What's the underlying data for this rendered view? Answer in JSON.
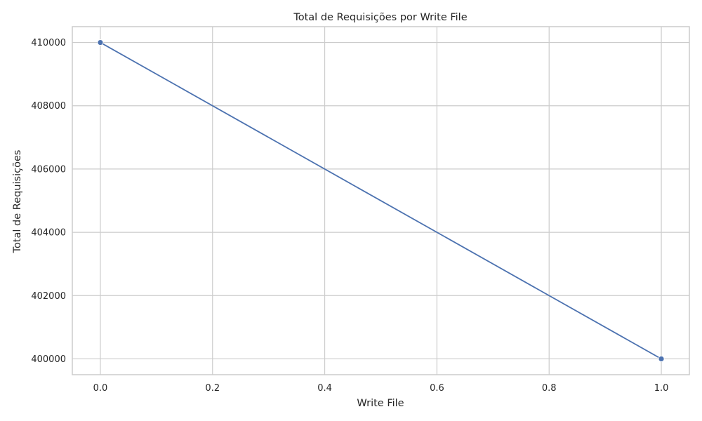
{
  "chart_data": {
    "type": "line",
    "title": "Total de Requisições por Write File",
    "xlabel": "Write File",
    "ylabel": "Total de Requisições",
    "x": [
      0,
      1
    ],
    "series": [
      {
        "values": [
          410000,
          400000
        ]
      }
    ],
    "xlim": [
      -0.05,
      1.05
    ],
    "ylim": [
      399500,
      410500
    ],
    "xticks": [
      0.0,
      0.2,
      0.4,
      0.6,
      0.8,
      1.0
    ],
    "xtick_labels": [
      "0.0",
      "0.2",
      "0.4",
      "0.6",
      "0.8",
      "1.0"
    ],
    "yticks": [
      400000,
      402000,
      404000,
      406000,
      408000,
      410000
    ],
    "ytick_labels": [
      "400000",
      "402000",
      "404000",
      "406000",
      "408000",
      "410000"
    ],
    "grid": true,
    "line_color": "#4c72b0"
  }
}
